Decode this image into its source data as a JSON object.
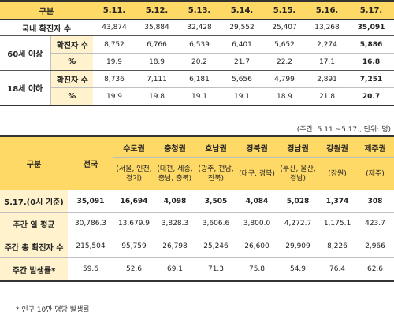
{
  "table1": {
    "header": [
      "구분",
      "5.11.",
      "5.12.",
      "5.13.",
      "5.14.",
      "5.15.",
      "5.16.",
      "5.17."
    ],
    "total_row": {
      "label": "국내 확진자 수",
      "values": [
        "43,874",
        "35,884",
        "32,428",
        "29,552",
        "25,407",
        "13,268",
        "35,091"
      ]
    },
    "groups": [
      {
        "label": "60세 이상",
        "rows": [
          {
            "label": "확진자 수",
            "values": [
              "8,752",
              "6,766",
              "6,539",
              "6,401",
              "5,652",
              "2,274",
              "5,886"
            ]
          },
          {
            "label": "%",
            "values": [
              "19.9",
              "18.9",
              "20.2",
              "21.7",
              "22.2",
              "17.1",
              "16.8"
            ]
          }
        ]
      },
      {
        "label": "18세 이하",
        "rows": [
          {
            "label": "확진자 수",
            "values": [
              "8,736",
              "7,111",
              "6,181",
              "5,656",
              "4,799",
              "2,891",
              "7,251"
            ]
          },
          {
            "label": "%",
            "values": [
              "19.9",
              "19.8",
              "19.1",
              "19.1",
              "18.9",
              "21.8",
              "20.7"
            ]
          }
        ]
      }
    ]
  },
  "unit_note": "(주간: 5.11.~5.17., 단위: 명)",
  "table2": {
    "header_label": "구분",
    "nation_label": "전국",
    "regions": [
      {
        "name": "수도권",
        "sub": "(서울, 인천, 경기)"
      },
      {
        "name": "충청권",
        "sub": "(대전, 세종, 충남, 충북)"
      },
      {
        "name": "호남권",
        "sub": "(광주, 전남, 전북)"
      },
      {
        "name": "경북권",
        "sub": "(대구, 경북)"
      },
      {
        "name": "경남권",
        "sub": "(부산, 울산, 경남)"
      },
      {
        "name": "강원권",
        "sub": "(강원)"
      },
      {
        "name": "제주권",
        "sub": "(제주)"
      }
    ],
    "rows": [
      {
        "label": "5.17.(0시 기준)",
        "values": [
          "35,091",
          "16,694",
          "4,098",
          "3,505",
          "4,084",
          "5,028",
          "1,374",
          "308"
        ]
      },
      {
        "label": "주간 일 평균",
        "values": [
          "30,786.3",
          "13,679.9",
          "3,828.3",
          "3,606.6",
          "3,800.0",
          "4,272.7",
          "1,175.1",
          "423.7"
        ]
      },
      {
        "label": "주간 총 확진자 수",
        "values": [
          "215,504",
          "95,759",
          "26,798",
          "25,246",
          "26,600",
          "29,909",
          "8,226",
          "2,966"
        ]
      },
      {
        "label": "주간 발생률*",
        "values": [
          "59.6",
          "52.6",
          "69.1",
          "71.3",
          "75.8",
          "54.9",
          "76.4",
          "62.6"
        ]
      }
    ]
  },
  "footnote": "* 인구 10만 명당 발생률"
}
